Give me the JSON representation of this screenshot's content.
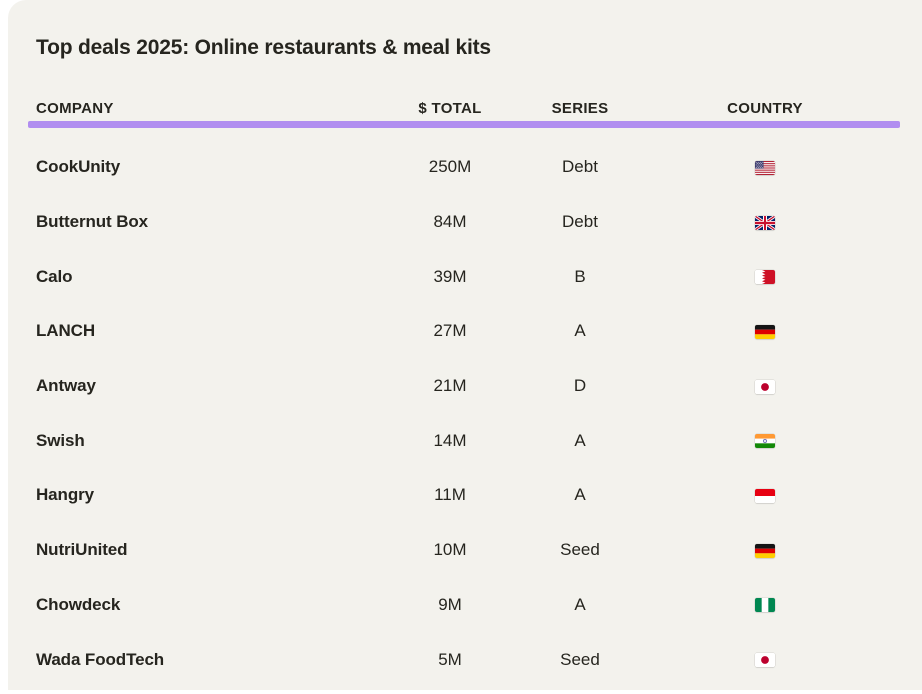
{
  "title": "Top deals 2025: Online restaurants & meal kits",
  "columns": {
    "company": "COMPANY",
    "total": "$ TOTAL",
    "series": "SERIES",
    "country": "COUNTRY"
  },
  "colors": {
    "background": "#f3f2ed",
    "accent": "#b18ef0",
    "text": "#26251f"
  },
  "rows": [
    {
      "company": "CookUnity",
      "total": "250M",
      "series": "Debt",
      "country": "US"
    },
    {
      "company": "Butternut Box",
      "total": "84M",
      "series": "Debt",
      "country": "GB"
    },
    {
      "company": "Calo",
      "total": "39M",
      "series": "B",
      "country": "BH"
    },
    {
      "company": "LANCH",
      "total": "27M",
      "series": "A",
      "country": "DE"
    },
    {
      "company": "Antway",
      "total": "21M",
      "series": "D",
      "country": "JP"
    },
    {
      "company": "Swish",
      "total": "14M",
      "series": "A",
      "country": "IN"
    },
    {
      "company": "Hangry",
      "total": "11M",
      "series": "A",
      "country": "ID"
    },
    {
      "company": "NutriUnited",
      "total": "10M",
      "series": "Seed",
      "country": "DE"
    },
    {
      "company": "Chowdeck",
      "total": "9M",
      "series": "A",
      "country": "NG"
    },
    {
      "company": "Wada FoodTech",
      "total": "5M",
      "series": "Seed",
      "country": "JP"
    }
  ]
}
